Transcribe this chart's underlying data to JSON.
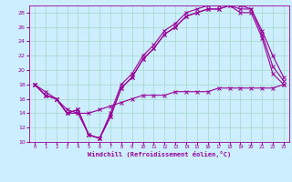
{
  "xlabel": "Windchill (Refroidissement éolien,°C)",
  "bg_color": "#cceeff",
  "line_color": "#990099",
  "grid_color": "#aaddcc",
  "xlim": [
    -0.5,
    23.5
  ],
  "ylim": [
    10,
    29
  ],
  "yticks": [
    10,
    12,
    14,
    16,
    18,
    20,
    22,
    24,
    26,
    28
  ],
  "xticks": [
    0,
    1,
    2,
    3,
    4,
    5,
    6,
    7,
    8,
    9,
    10,
    11,
    12,
    13,
    14,
    15,
    16,
    17,
    18,
    19,
    20,
    21,
    22,
    23
  ],
  "line1_x": [
    0,
    1,
    2,
    3,
    4,
    5,
    6,
    7,
    8,
    9,
    10,
    11,
    12,
    13,
    14,
    15,
    16,
    17,
    18,
    19,
    20,
    21,
    22,
    23
  ],
  "line1_y": [
    18,
    16.5,
    16,
    14,
    14.5,
    11,
    10.5,
    13.5,
    17.5,
    19,
    21.5,
    23,
    25,
    26,
    27.5,
    28,
    28.5,
    28.5,
    29,
    28,
    28,
    24.5,
    19.5,
    18
  ],
  "line2_x": [
    0,
    1,
    2,
    3,
    4,
    5,
    6,
    7,
    8,
    9,
    10,
    11,
    12,
    13,
    14,
    15,
    16,
    17,
    18,
    19,
    20,
    21,
    22,
    23
  ],
  "line2_y": [
    18,
    16.5,
    16,
    14,
    14.5,
    11,
    10.5,
    13.5,
    17.5,
    19,
    21.5,
    23,
    25,
    26,
    27.5,
    28,
    28.5,
    28.5,
    29,
    28.5,
    28.5,
    25.5,
    22,
    19
  ],
  "line3_x": [
    0,
    1,
    2,
    3,
    4,
    5,
    6,
    7,
    8,
    9,
    10,
    11,
    12,
    13,
    14,
    15,
    16,
    17,
    18,
    19,
    20,
    21,
    22,
    23
  ],
  "line3_y": [
    18,
    16.5,
    16,
    14,
    14,
    11,
    10.5,
    14,
    18,
    19.5,
    22,
    23.5,
    25.5,
    26.5,
    28,
    28.5,
    29,
    29,
    29.5,
    29,
    28.5,
    25,
    20.5,
    18.5
  ],
  "line4_x": [
    0,
    1,
    2,
    3,
    4,
    5,
    6,
    7,
    8,
    9,
    10,
    11,
    12,
    13,
    14,
    15,
    16,
    17,
    18,
    19,
    20,
    21,
    22,
    23
  ],
  "line4_y": [
    18,
    17,
    16,
    14.5,
    14,
    14,
    14.5,
    15,
    15.5,
    16,
    16.5,
    16.5,
    16.5,
    17,
    17,
    17,
    17,
    17.5,
    17.5,
    17.5,
    17.5,
    17.5,
    17.5,
    18
  ]
}
